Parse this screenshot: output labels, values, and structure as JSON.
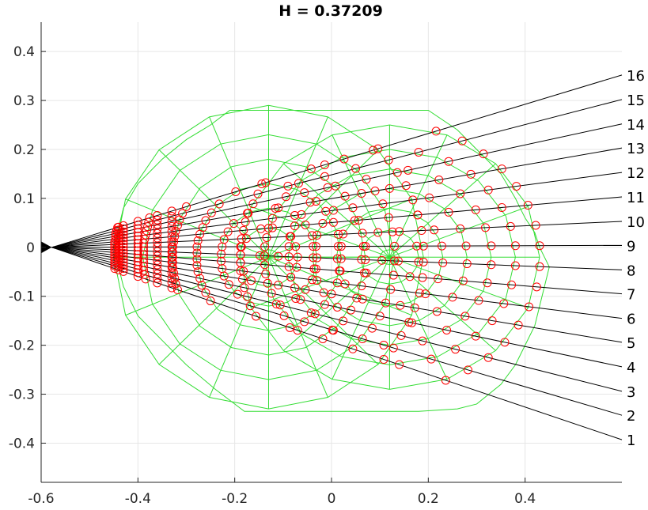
{
  "chart_data": {
    "type": "line",
    "title": "H = 0.37209",
    "xlabel": "",
    "ylabel": "",
    "xlim": [
      -0.6,
      0.6
    ],
    "ylim": [
      -0.48,
      0.46
    ],
    "xticks": [
      -0.6,
      -0.4,
      -0.2,
      0,
      0.2,
      0.4
    ],
    "xtick_labels": [
      "-0.6",
      "-0.4",
      "-0.2",
      "0",
      "0.2",
      "0.4"
    ],
    "yticks": [
      0.4,
      0.3,
      0.2,
      0.1,
      0,
      -0.1,
      -0.2,
      -0.3,
      -0.4
    ],
    "ytick_labels": [
      "0.4",
      "0.3",
      "0.2",
      "0.1",
      "0",
      "-0.1",
      "-0.2",
      "-0.3",
      "-0.4"
    ],
    "grid": true,
    "rays": {
      "origin": [
        -0.578,
        0.0
      ],
      "end_x": 0.6,
      "end_y": [
        -0.393,
        -0.343,
        -0.294,
        -0.244,
        -0.194,
        -0.145,
        -0.095,
        -0.046,
        0.004,
        0.053,
        0.103,
        0.153,
        0.203,
        0.252,
        0.302,
        0.352
      ],
      "labels": [
        "1",
        "2",
        "3",
        "4",
        "5",
        "6",
        "7",
        "8",
        "9",
        "10",
        "11",
        "12",
        "13",
        "14",
        "15",
        "16"
      ],
      "color": "#000000"
    },
    "meshes": [
      {
        "name": "",
        "center": [
          -0.13,
          -0.02
        ],
        "ring_radii_x": [
          0.02,
          0.06,
          0.1,
          0.15,
          0.2,
          0.26,
          0.32
        ],
        "ring_radii_y": [
          0.015,
          0.06,
          0.1,
          0.15,
          0.2,
          0.25,
          0.31
        ],
        "spokes": 16,
        "color": "#33dd33"
      },
      {
        "name": "",
        "center": [
          0.12,
          -0.02
        ],
        "ring_radii_x": [
          0.02,
          0.06,
          0.11,
          0.16,
          0.21,
          0.26,
          0.31
        ],
        "ring_radii_y": [
          0.015,
          0.055,
          0.1,
          0.14,
          0.18,
          0.22,
          0.27
        ],
        "spokes": 16,
        "color": "#33dd33"
      }
    ],
    "outer_hull": {
      "x": [
        -0.21,
        0.2,
        0.26,
        0.3,
        0.35,
        0.38,
        0.4,
        0.42,
        0.43,
        0.44,
        0.45,
        0.44,
        0.43,
        0.42,
        0.4,
        0.38,
        0.35,
        0.3,
        0.26,
        0.18,
        -0.18,
        -0.24,
        -0.3,
        -0.35,
        -0.4,
        -0.43,
        -0.45,
        -0.43,
        -0.4,
        -0.35,
        -0.3,
        -0.25,
        -0.21
      ],
      "y": [
        0.28,
        0.28,
        0.24,
        0.2,
        0.15,
        0.1,
        0.06,
        0.03,
        0.0,
        -0.02,
        -0.04,
        -0.08,
        -0.12,
        -0.16,
        -0.2,
        -0.24,
        -0.28,
        -0.32,
        -0.33,
        -0.335,
        -0.335,
        -0.29,
        -0.24,
        -0.19,
        -0.14,
        -0.08,
        0.0,
        0.08,
        0.13,
        0.18,
        0.22,
        0.25,
        0.28
      ],
      "color": "#33dd33"
    },
    "markers": {
      "description": "",
      "style": "circle",
      "color": "#ff0000"
    }
  }
}
